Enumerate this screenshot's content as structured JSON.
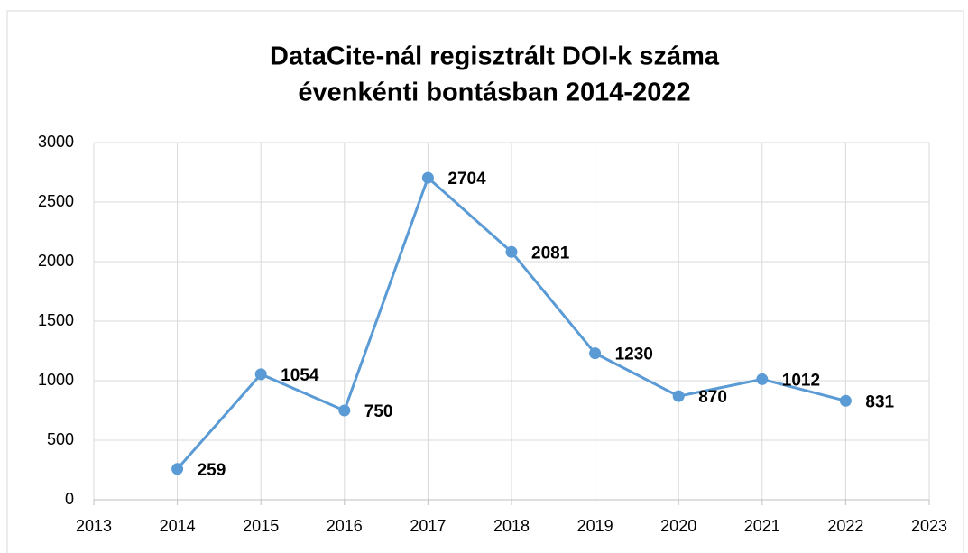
{
  "chart_data": {
    "type": "line",
    "title": [
      "DataCite-nál regisztrált DOI-k száma",
      "évenkénti bontásban 2014-2022"
    ],
    "x": [
      2014,
      2015,
      2016,
      2017,
      2018,
      2019,
      2020,
      2021,
      2022
    ],
    "values": [
      259,
      1054,
      750,
      2704,
      2081,
      1230,
      870,
      1012,
      831
    ],
    "color": "#5b9bd5",
    "xlim": [
      2013,
      2023
    ],
    "xticks": [
      2013,
      2014,
      2015,
      2016,
      2017,
      2018,
      2019,
      2020,
      2021,
      2022,
      2023
    ],
    "ylim": [
      0,
      3000
    ],
    "yticks": [
      0,
      500,
      1000,
      1500,
      2000,
      2500,
      3000
    ],
    "grid": true
  }
}
